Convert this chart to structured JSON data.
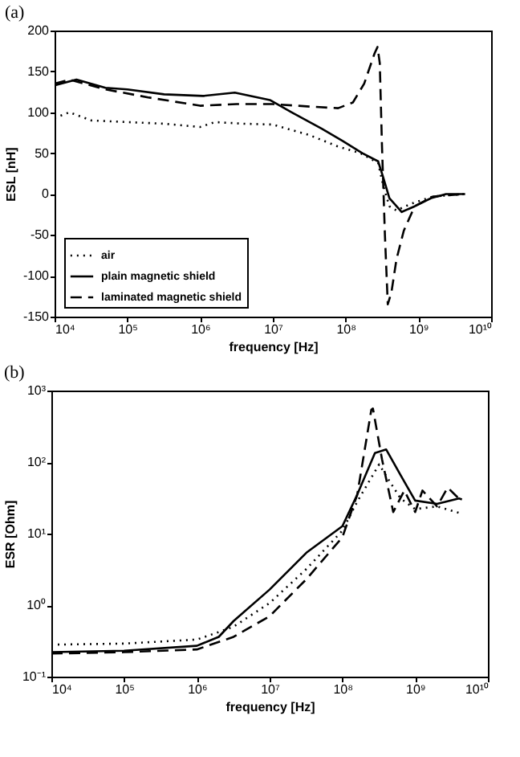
{
  "chart_data": [
    {
      "type": "line",
      "title": "(a)",
      "xlabel": "frequency [Hz]",
      "ylabel": "ESL [nH]",
      "log": "x",
      "legend": "bottom left",
      "grid": false,
      "xlim": [
        10000,
        10000000000
      ],
      "xticks": [
        {
          "value": 10000,
          "label": "10⁴"
        },
        {
          "value": 100000,
          "label": "10⁵"
        },
        {
          "value": 1000000,
          "label": "10⁶"
        },
        {
          "value": 10000000,
          "label": "10⁷"
        },
        {
          "value": 100000000,
          "label": "10⁸"
        },
        {
          "value": 1000000000,
          "label": "10⁹"
        },
        {
          "value": 10000000000,
          "label": "10¹⁰"
        }
      ],
      "ylim": [
        -150,
        200
      ],
      "yticks": [
        -150,
        -100,
        -50,
        0,
        50,
        100,
        150,
        200
      ],
      "series": [
        {
          "name": "air",
          "color": "#000000",
          "line_style": "dotted",
          "x": [
            10000.0,
            16000.0,
            32000.0,
            100000.0,
            320000.0,
            1000000.0,
            1600000.0,
            4000000.0,
            10000000.0,
            32000000.0,
            79000000.0,
            160000000.0,
            280000000.0,
            330000000.0,
            400000000.0,
            500000000.0,
            790000000.0,
            1600000000.0,
            4400000000.0
          ],
          "values": [
            93,
            100,
            90,
            88,
            86,
            82,
            88,
            86,
            85,
            72,
            58,
            50,
            38,
            10,
            -15,
            -20,
            -12,
            -3,
            0
          ]
        },
        {
          "name": "plain magnetic shield",
          "color": "#000000",
          "line_style": "solid",
          "x": [
            10000.0,
            20000.0,
            50000.0,
            100000.0,
            320000.0,
            1100000.0,
            3000000.0,
            9100000.0,
            18000000.0,
            47000000.0,
            91000000.0,
            170000000.0,
            280000000.0,
            330000000.0,
            400000000.0,
            590000000.0,
            890000000.0,
            1500000000.0,
            2400000000.0,
            4400000000.0
          ],
          "values": [
            133,
            140,
            130,
            128,
            122,
            120,
            124,
            115,
            100,
            80,
            65,
            50,
            40,
            20,
            -5,
            -22,
            -15,
            -5,
            0,
            0
          ]
        },
        {
          "name": "laminated magnetic shield",
          "color": "#000000",
          "line_style": "dashed",
          "x": [
            10000.0,
            16000.0,
            50000.0,
            200000.0,
            1000000.0,
            3200000.0,
            10000000.0,
            32000000.0,
            79000000.0,
            126000000.0,
            180000000.0,
            250000000.0,
            275000000.0,
            295000000.0,
            316000000.0,
            347000000.0,
            380000000.0,
            427000000.0,
            500000000.0,
            630000000.0,
            890000000.0,
            1600000000.0,
            4400000000.0
          ],
          "values": [
            135,
            140,
            128,
            118,
            108,
            110,
            110,
            107,
            105,
            112,
            135,
            172,
            180,
            160,
            60,
            -50,
            -135,
            -120,
            -80,
            -45,
            -15,
            -3,
            0
          ]
        }
      ]
    },
    {
      "type": "line",
      "title": "(b)",
      "xlabel": "frequency [Hz]",
      "ylabel": "ESR [Ohm]",
      "log": "xy",
      "grid": false,
      "xlim": [
        10000,
        10000000000
      ],
      "xticks": [
        {
          "value": 10000,
          "label": "10⁴"
        },
        {
          "value": 100000,
          "label": "10⁵"
        },
        {
          "value": 1000000,
          "label": "10⁶"
        },
        {
          "value": 10000000,
          "label": "10⁷"
        },
        {
          "value": 100000000,
          "label": "10⁸"
        },
        {
          "value": 1000000000,
          "label": "10⁹"
        },
        {
          "value": 10000000000,
          "label": "10¹⁰"
        }
      ],
      "ylim": [
        0.1,
        1000
      ],
      "yticks": [
        {
          "value": 0.1,
          "label": "10⁻¹"
        },
        {
          "value": 1,
          "label": "10⁰"
        },
        {
          "value": 10,
          "label": "10¹"
        },
        {
          "value": 100,
          "label": "10²"
        },
        {
          "value": 1000,
          "label": "10³"
        }
      ],
      "series": [
        {
          "color": "#000000",
          "line_style": "dotted",
          "x": [
            10000.0,
            100000.0,
            1000000.0,
            2000000.0,
            3200000.0,
            10000000.0,
            32000000.0,
            100000000.0,
            160000000.0,
            320000000.0,
            400000000.0,
            630000000.0,
            1000000000.0,
            2000000000.0,
            4400000000.0
          ],
          "values": [
            0.28,
            0.29,
            0.33,
            0.42,
            0.5,
            1.07,
            3.2,
            11,
            28,
            93,
            64,
            31,
            22,
            24,
            19
          ]
        },
        {
          "color": "#000000",
          "line_style": "solid",
          "x": [
            10000.0,
            100000.0,
            1000000.0,
            2000000.0,
            3200000.0,
            10000000.0,
            32000000.0,
            100000000.0,
            160000000.0,
            280000000.0,
            400000000.0,
            630000000.0,
            1000000000.0,
            2000000000.0,
            4000000000.0,
            4400000000.0
          ],
          "values": [
            0.22,
            0.23,
            0.27,
            0.36,
            0.6,
            1.65,
            5.4,
            12.7,
            35,
            134,
            150,
            66,
            29,
            26,
            31,
            30
          ]
        },
        {
          "color": "#000000",
          "line_style": "dashed",
          "x": [
            10000.0,
            100000.0,
            1000000.0,
            3200000.0,
            10000000.0,
            32000000.0,
            100000000.0,
            160000000.0,
            250000000.0,
            263000000.0,
            350000000.0,
            500000000.0,
            710000000.0,
            1000000000.0,
            1260000000.0,
            2000000000.0,
            2800000000.0,
            4400000000.0
          ],
          "values": [
            0.21,
            0.22,
            0.24,
            0.36,
            0.7,
            2.3,
            8.9,
            35,
            540,
            560,
            110,
            20,
            40,
            20,
            40,
            24,
            44,
            28
          ]
        }
      ]
    }
  ]
}
